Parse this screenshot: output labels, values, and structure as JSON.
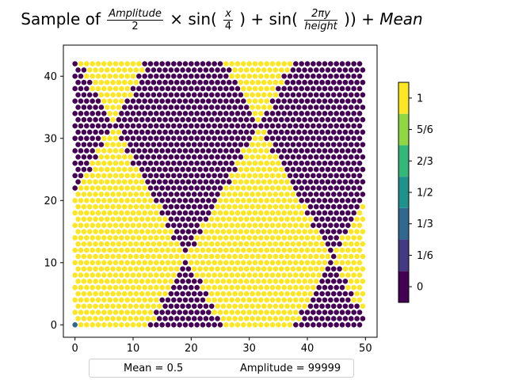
{
  "title": {
    "prefix": "Sample of",
    "amp_num": "Amplitude",
    "amp_den": "2",
    "times": "×",
    "sin1": "sin(",
    "x_num": "x",
    "x_den": "4",
    "plus": ") + sin(",
    "y_num": "2πy",
    "y_den": "height",
    "close": "))",
    "mean_term": "+ Mean"
  },
  "chart_data": {
    "type": "scatter",
    "description_formula": "Amplitude/2 * (sin(x/4) + sin(2*pi*y/height)) + Mean, values snapped to levels",
    "x_range": [
      0,
      49
    ],
    "y_range": [
      0,
      42
    ],
    "grid_shape": {
      "cols": 50,
      "rows": 43,
      "hexagonal_offset": true
    },
    "xlim": [
      -2,
      52
    ],
    "ylim": [
      -2,
      45
    ],
    "xticks": [
      0,
      10,
      20,
      30,
      40,
      50
    ],
    "yticks": [
      0,
      10,
      20,
      30,
      40
    ],
    "mean": 0.5,
    "amplitude": 99999,
    "special_points": [
      {
        "x": 0,
        "y": 0,
        "value": 0.333
      }
    ],
    "colorbar": {
      "levels": [
        0,
        0.1667,
        0.3333,
        0.5,
        0.6667,
        0.8333,
        1
      ],
      "tick_labels": [
        "0",
        "1/6",
        "1/3",
        "1/2",
        "2/3",
        "5/6",
        "1"
      ],
      "colors": [
        "#440154",
        "#443983",
        "#31688e",
        "#21918c",
        "#35b779",
        "#90d743",
        "#fde725"
      ]
    }
  },
  "legend": {
    "mean_text": "Mean = 0.5",
    "amplitude_text": "Amplitude = 99999"
  }
}
